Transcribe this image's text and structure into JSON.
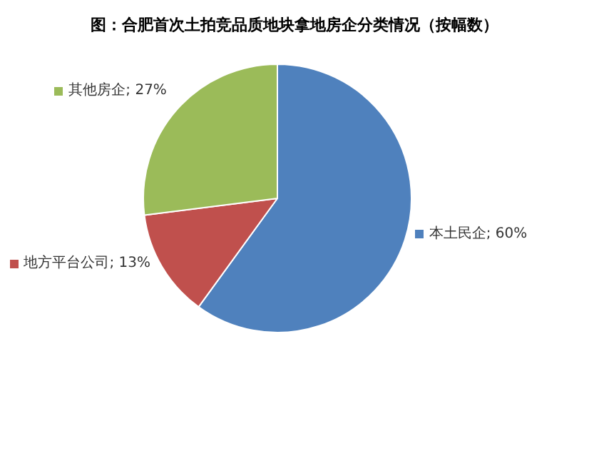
{
  "chart_data": {
    "type": "pie",
    "title": "图：合肥首次土拍竞品质地块拿地房企分类情况（按幅数）",
    "categories": [
      "本土民企",
      "地方平台公司",
      "其他房企"
    ],
    "values": [
      60,
      13,
      27
    ],
    "colors": [
      "#4f81bd",
      "#c0504d",
      "#9bbb59"
    ],
    "value_labels": [
      "60%",
      "13%",
      "27%"
    ],
    "legend": "right"
  }
}
